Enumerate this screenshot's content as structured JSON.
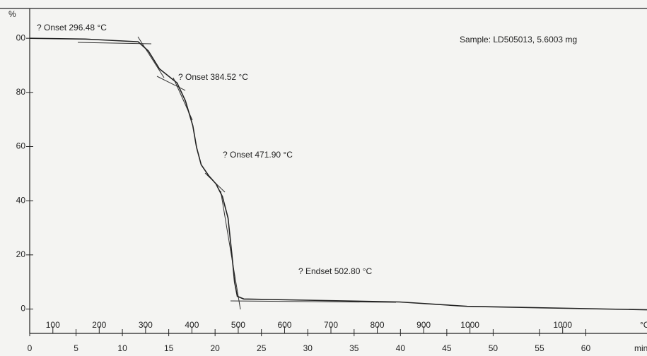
{
  "chart_data": {
    "type": "line",
    "ylabel": "%",
    "xlabel": "min",
    "x2label": "°C",
    "annotations": [
      "? Onset  296.48 °C",
      "? Onset  384.52 °C",
      "? Onset  471.90 °C",
      "? Endset  502.80 °C",
      "Sample: LD505013, 5.6003 mg"
    ],
    "x": [
      0,
      6,
      11.7,
      12.8,
      14,
      15.9,
      16.8,
      17.6,
      18,
      18.5,
      19.3,
      20.1,
      20.8,
      21.4,
      21.8,
      22.1,
      22.4,
      23.1,
      39.9,
      47.2,
      66.6
    ],
    "values": [
      100,
      99.7,
      98.7,
      95.3,
      88.7,
      83.5,
      76.9,
      67.7,
      59.8,
      53.3,
      49.3,
      46.2,
      41.5,
      33.6,
      20.5,
      10,
      4.7,
      3.7,
      2.6,
      1.0,
      -0.3
    ],
    "color": "#222222",
    "xlim": [
      0,
      66.6
    ],
    "ylim": [
      -9,
      111
    ],
    "xticks": [
      0,
      5,
      10,
      15,
      20,
      25,
      30,
      35,
      40,
      45,
      50,
      55,
      60
    ],
    "x2ticks": [
      {
        "value": 2.5,
        "label": "100"
      },
      {
        "value": 7.5,
        "label": "200"
      },
      {
        "value": 12.5,
        "label": "300"
      },
      {
        "value": 17.5,
        "label": "400"
      },
      {
        "value": 22.5,
        "label": "500"
      },
      {
        "value": 27.5,
        "label": "600"
      },
      {
        "value": 32.5,
        "label": "700"
      },
      {
        "value": 37.5,
        "label": "800"
      },
      {
        "value": 42.5,
        "label": "900"
      },
      {
        "value": 47.5,
        "label": "1000"
      },
      {
        "value": 57.5,
        "label": "1000"
      }
    ],
    "yticks": [
      0,
      20,
      40,
      60,
      80,
      {
        "value": 100,
        "label": "00"
      }
    ]
  }
}
